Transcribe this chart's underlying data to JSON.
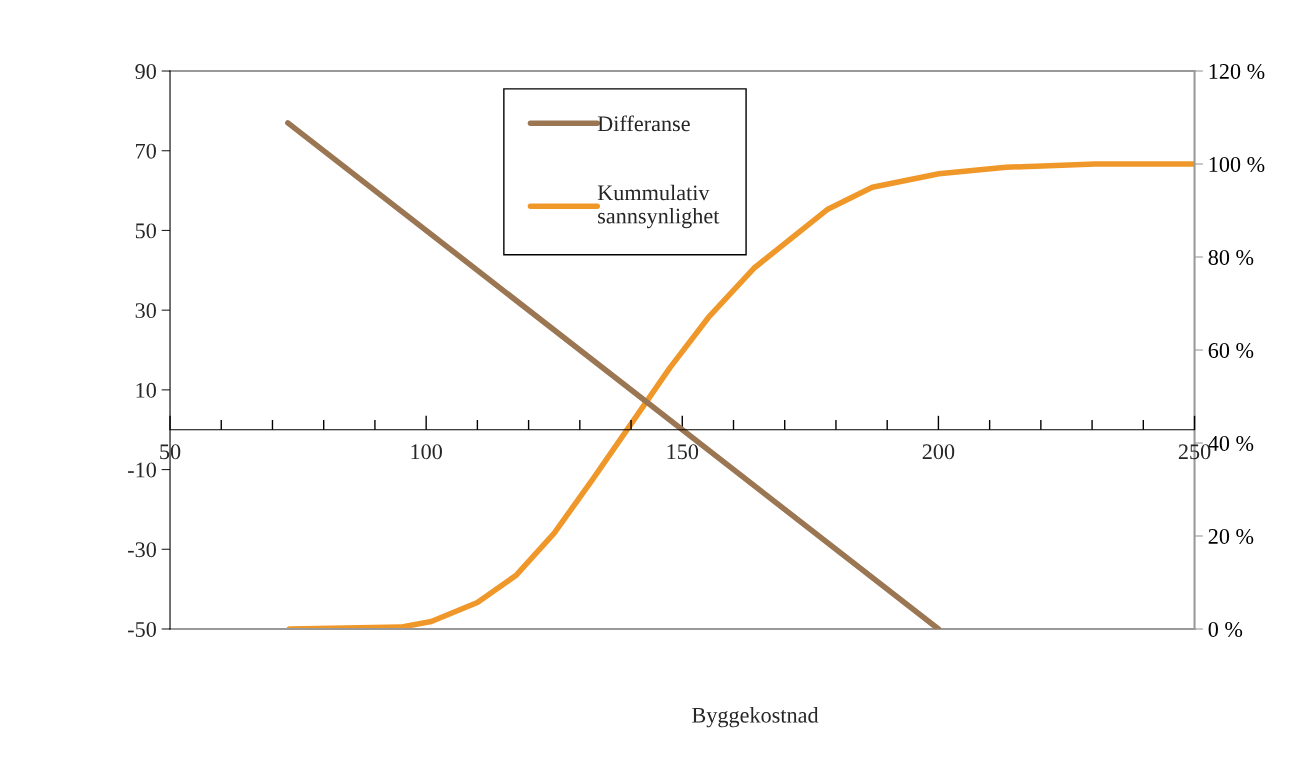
{
  "chart_data": {
    "type": "line",
    "xlabel": "Byggekostnad",
    "xlim": [
      50,
      250
    ],
    "xticks": [
      50,
      {
        "value": 60,
        "label": null
      },
      {
        "value": 70,
        "label": null
      },
      {
        "value": 80,
        "label": null
      },
      {
        "value": 90,
        "label": null
      },
      100,
      {
        "value": 110,
        "label": null
      },
      {
        "value": 120,
        "label": null
      },
      {
        "value": 130,
        "label": null
      },
      {
        "value": 140,
        "label": null
      },
      150,
      {
        "value": 160,
        "label": null
      },
      {
        "value": 170,
        "label": null
      },
      {
        "value": 180,
        "label": null
      },
      {
        "value": 190,
        "label": null
      },
      200,
      {
        "value": 210,
        "label": null
      },
      {
        "value": 220,
        "label": null
      },
      {
        "value": 230,
        "label": null
      },
      {
        "value": 240,
        "label": null
      },
      250
    ],
    "ylim": [
      -50,
      90
    ],
    "yticks": [
      -50,
      -30,
      -10,
      10,
      30,
      50,
      70,
      90
    ],
    "y2lim": [
      0,
      120
    ],
    "y2ticks": [
      {
        "value": 0,
        "label": "0 %"
      },
      {
        "value": 20,
        "label": "20 %"
      },
      {
        "value": 40,
        "label": "40 %"
      },
      {
        "value": 60,
        "label": "60 %"
      },
      {
        "value": 80,
        "label": "80 %"
      },
      {
        "value": 100,
        "label": "100 %"
      },
      {
        "value": 120,
        "label": "120 %"
      }
    ],
    "legend": "top",
    "grid": false,
    "line_style": "solid",
    "series": [
      {
        "name": "Differanse",
        "color": "#9b7653",
        "x": [
          73,
          200
        ],
        "values": [
          77,
          -50
        ]
      },
      {
        "name": "Kummulativ sannsynlighet",
        "color": "#f0972a",
        "axis": "y2",
        "x": [
          73.3,
          95,
          101,
          110,
          117.5,
          125,
          132.5,
          139.3,
          147.6,
          155.1,
          164.1,
          178.3,
          187.1,
          200.1,
          213.2,
          230.6,
          250
        ],
        "values": [
          0,
          0.4,
          1.6,
          5.7,
          11.5,
          20.6,
          32.2,
          43,
          56.2,
          67,
          77.7,
          90.2,
          95,
          97.9,
          99.3,
          100,
          100
        ]
      }
    ]
  }
}
